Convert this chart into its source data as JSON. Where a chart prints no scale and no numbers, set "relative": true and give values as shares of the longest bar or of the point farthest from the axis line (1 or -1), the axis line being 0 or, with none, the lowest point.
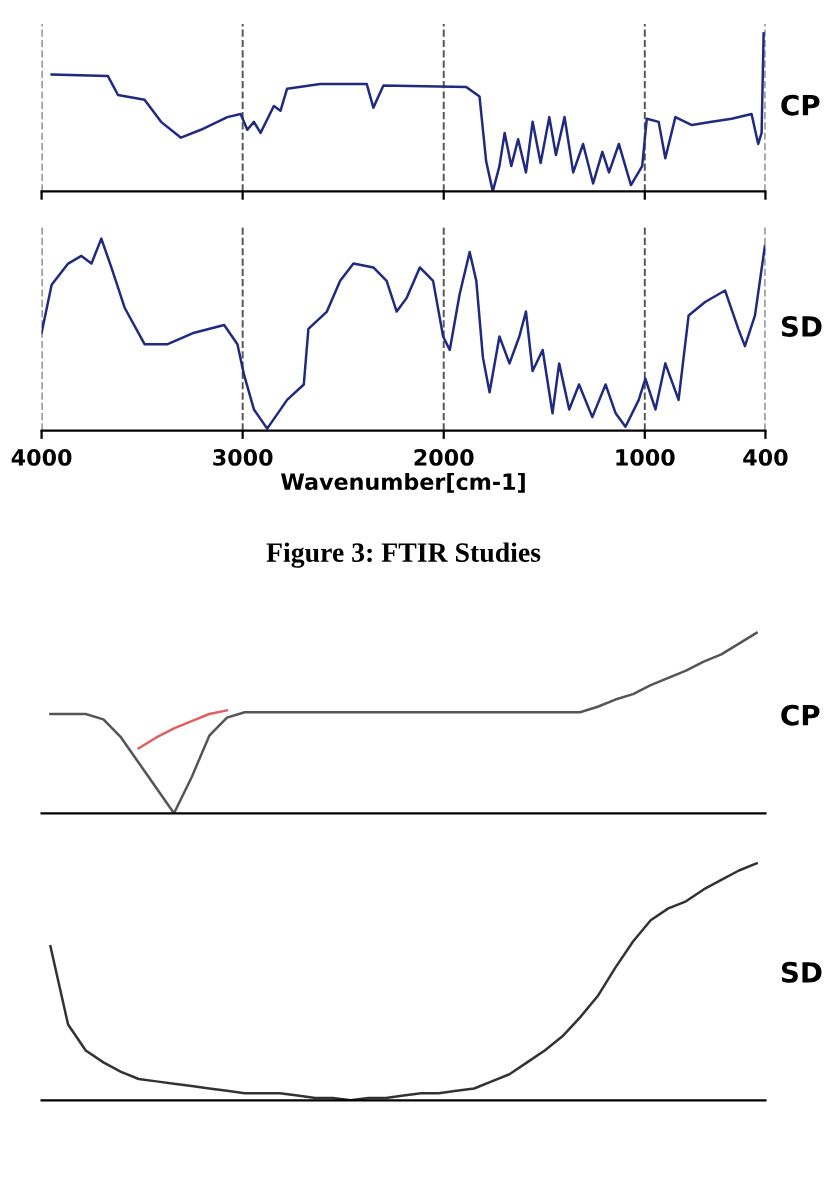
{
  "chart_data": [
    {
      "type": "line",
      "relative": true,
      "xlim": [
        4000,
        400
      ],
      "xticks": [
        4000,
        3000,
        2000,
        1000,
        400
      ],
      "grid": "x",
      "tick_labels": false,
      "x": [
        3950,
        3670,
        3620,
        3488,
        3406,
        3307,
        3208,
        3076,
        3010,
        2977,
        2944,
        2911,
        2845,
        2812,
        2779,
        2614,
        2383,
        2350,
        2300,
        1888,
        1822,
        1789,
        1756,
        1723,
        1697,
        1664,
        1630,
        1591,
        1558,
        1518,
        1475,
        1442,
        1399,
        1356,
        1307,
        1257,
        1211,
        1178,
        1129,
        1069,
        1013,
        990,
        931,
        898,
        848,
        766,
        667,
        568,
        469,
        436,
        419,
        409
      ],
      "series": [
        {
          "name": "CP",
          "color": "#1f2a80",
          "values": [
            0.74,
            0.73,
            0.61,
            0.58,
            0.44,
            0.34,
            0.39,
            0.47,
            0.49,
            0.39,
            0.44,
            0.37,
            0.54,
            0.51,
            0.65,
            0.68,
            0.68,
            0.53,
            0.67,
            0.66,
            0.6,
            0.19,
            0.0,
            0.16,
            0.37,
            0.16,
            0.33,
            0.12,
            0.44,
            0.18,
            0.47,
            0.23,
            0.47,
            0.12,
            0.3,
            0.05,
            0.25,
            0.12,
            0.3,
            0.04,
            0.16,
            0.46,
            0.44,
            0.21,
            0.47,
            0.42,
            0.44,
            0.46,
            0.49,
            0.3,
            0.37,
            1.0
          ]
        }
      ]
    },
    {
      "type": "line",
      "relative": true,
      "xlim": [
        4000,
        400
      ],
      "xticks": [
        4000,
        3000,
        2000,
        1000,
        400
      ],
      "grid": "x",
      "xlabel": "Wavenumber[cm-1]",
      "annotations": [
        "Figure 3: FTIR Studies"
      ],
      "x": [
        4000,
        3950,
        3868,
        3802,
        3752,
        3703,
        3653,
        3587,
        3488,
        3373,
        3241,
        3092,
        3026,
        2993,
        2944,
        2878,
        2779,
        2696,
        2673,
        2581,
        2515,
        2449,
        2350,
        2284,
        2234,
        2185,
        2119,
        2053,
        2003,
        1970,
        1921,
        1871,
        1838,
        1805,
        1772,
        1723,
        1673,
        1624,
        1591,
        1558,
        1508,
        1459,
        1426,
        1376,
        1327,
        1261,
        1195,
        1145,
        1096,
        1030,
        997,
        947,
        898,
        832,
        782,
        700,
        601,
        535,
        502,
        452,
        403
      ],
      "series": [
        {
          "name": "SD",
          "color": "#1f2a80",
          "values": [
            0.51,
            0.76,
            0.87,
            0.91,
            0.87,
            1.0,
            0.85,
            0.64,
            0.45,
            0.45,
            0.51,
            0.55,
            0.45,
            0.29,
            0.11,
            0.01,
            0.16,
            0.24,
            0.53,
            0.62,
            0.78,
            0.87,
            0.85,
            0.78,
            0.62,
            0.69,
            0.85,
            0.78,
            0.49,
            0.42,
            0.71,
            0.93,
            0.78,
            0.38,
            0.2,
            0.49,
            0.35,
            0.49,
            0.62,
            0.31,
            0.42,
            0.09,
            0.35,
            0.11,
            0.24,
            0.07,
            0.24,
            0.09,
            0.02,
            0.16,
            0.27,
            0.11,
            0.35,
            0.16,
            0.6,
            0.67,
            0.73,
            0.53,
            0.44,
            0.6,
            0.96
          ]
        }
      ]
    },
    {
      "type": "line",
      "relative": true,
      "tick_labels": false,
      "categories": [
        null,
        null,
        null,
        null,
        null,
        null,
        null,
        null,
        null,
        null,
        null,
        null,
        null,
        null,
        null,
        null,
        null,
        null,
        null,
        null,
        null,
        null,
        null,
        null,
        null,
        null,
        null,
        null,
        null,
        null,
        null,
        null,
        null,
        null,
        null,
        null,
        null,
        null,
        null,
        null,
        null
      ],
      "series": [
        {
          "name": "CP",
          "color": "#555555",
          "values": [
            0.55,
            0.55,
            0.55,
            0.52,
            0.42,
            0.28,
            0.14,
            0.0,
            0.2,
            0.43,
            0.53,
            0.56,
            0.56,
            0.56,
            0.56,
            0.56,
            0.56,
            0.56,
            0.56,
            0.56,
            0.56,
            0.56,
            0.56,
            0.56,
            0.56,
            0.56,
            0.56,
            0.56,
            0.56,
            0.56,
            0.56,
            0.59,
            0.63,
            0.66,
            0.71,
            0.75,
            0.79,
            0.84,
            0.88,
            0.94,
            1.0
          ]
        },
        {
          "color": "#e06060",
          "values": [
            null,
            null,
            null,
            null,
            null,
            0.36,
            0.42,
            0.47,
            0.51,
            0.55,
            0.57,
            null,
            null,
            null,
            null,
            null,
            null,
            null,
            null,
            null,
            null,
            null,
            null,
            null,
            null,
            null,
            null,
            null,
            null,
            null,
            null,
            null,
            null,
            null,
            null,
            null,
            null,
            null,
            null,
            null,
            null
          ]
        }
      ]
    },
    {
      "type": "line",
      "relative": true,
      "tick_labels": false,
      "categories": [
        null,
        null,
        null,
        null,
        null,
        null,
        null,
        null,
        null,
        null,
        null,
        null,
        null,
        null,
        null,
        null,
        null,
        null,
        null,
        null,
        null,
        null,
        null,
        null,
        null,
        null,
        null,
        null,
        null,
        null,
        null,
        null,
        null,
        null,
        null,
        null,
        null,
        null,
        null,
        null,
        null
      ],
      "series": [
        {
          "name": "SD",
          "color": "#333333",
          "values": [
            0.65,
            0.32,
            0.21,
            0.16,
            0.12,
            0.09,
            0.08,
            0.07,
            0.06,
            0.05,
            0.04,
            0.03,
            0.03,
            0.03,
            0.02,
            0.01,
            0.01,
            0.0,
            0.01,
            0.01,
            0.02,
            0.03,
            0.03,
            0.04,
            0.05,
            0.08,
            0.11,
            0.16,
            0.21,
            0.27,
            0.35,
            0.44,
            0.56,
            0.67,
            0.76,
            0.81,
            0.84,
            0.89,
            0.93,
            0.97,
            1.0
          ]
        }
      ]
    }
  ]
}
